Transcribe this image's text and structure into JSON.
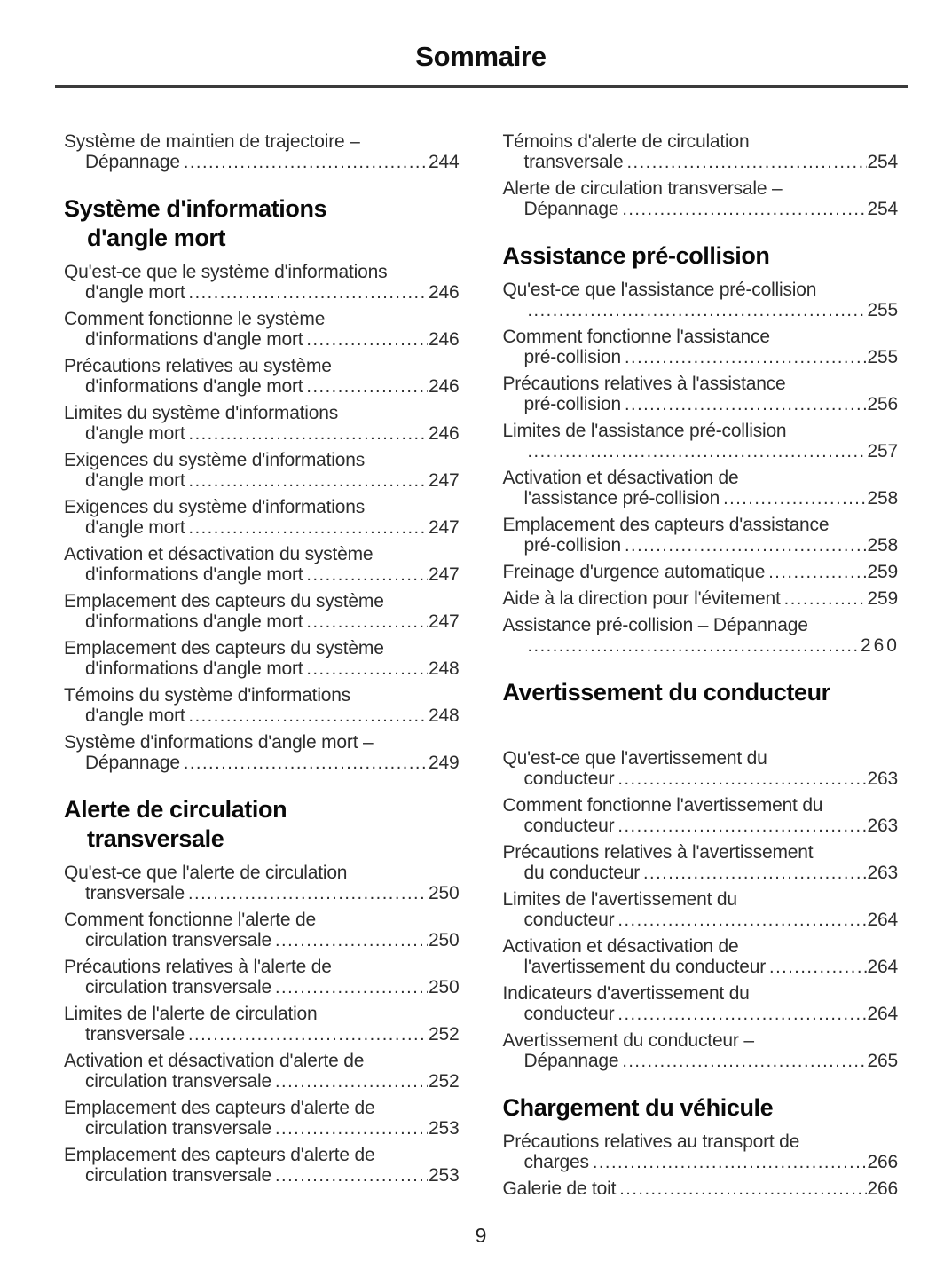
{
  "title": "Sommaire",
  "page_number": "9",
  "toc": {
    "left_column": [
      {
        "heading": null,
        "entries": [
          {
            "lines": [
              "Système de maintien de trajectoire –",
              "Dépannage"
            ],
            "page": "244"
          }
        ]
      },
      {
        "heading": [
          "Système d'informations",
          "d'angle mort"
        ],
        "entries": [
          {
            "lines": [
              "Qu'est-ce que le système d'informations",
              "d'angle mort"
            ],
            "page": "246"
          },
          {
            "lines": [
              "Comment fonctionne le système",
              "d'informations d'angle mort"
            ],
            "page": "246"
          },
          {
            "lines": [
              "Précautions relatives au système",
              "d'informations d'angle mort"
            ],
            "page": "246"
          },
          {
            "lines": [
              "Limites du système d'informations",
              "d'angle mort"
            ],
            "page": "246"
          },
          {
            "lines": [
              "Exigences du système d'informations",
              "d'angle mort"
            ],
            "page": "247"
          },
          {
            "lines": [
              "Exigences du système d'informations",
              "d'angle mort"
            ],
            "page": "247"
          },
          {
            "lines": [
              "Activation et désactivation du système",
              "d'informations d'angle mort"
            ],
            "page": "247"
          },
          {
            "lines": [
              "Emplacement des capteurs du système",
              "d'informations d'angle mort"
            ],
            "page": "247"
          },
          {
            "lines": [
              "Emplacement des capteurs du système",
              "d'informations d'angle mort"
            ],
            "page": "248"
          },
          {
            "lines": [
              "Témoins du système d'informations",
              "d'angle mort"
            ],
            "page": "248"
          },
          {
            "lines": [
              "Système d'informations d'angle mort –",
              "Dépannage"
            ],
            "page": "249"
          }
        ]
      },
      {
        "heading": [
          "Alerte de circulation",
          "transversale"
        ],
        "entries": [
          {
            "lines": [
              "Qu'est-ce que l'alerte de circulation",
              "transversale"
            ],
            "page": "250"
          },
          {
            "lines": [
              "Comment fonctionne l'alerte de",
              "circulation transversale"
            ],
            "page": "250"
          },
          {
            "lines": [
              "Précautions relatives à l'alerte de",
              "circulation transversale"
            ],
            "page": "250"
          },
          {
            "lines": [
              "Limites de l'alerte de circulation",
              "transversale"
            ],
            "page": "252"
          },
          {
            "lines": [
              "Activation et désactivation d'alerte de",
              "circulation transversale"
            ],
            "page": "252"
          },
          {
            "lines": [
              "Emplacement des capteurs d'alerte de",
              "circulation transversale"
            ],
            "page": "253"
          },
          {
            "lines": [
              "Emplacement des capteurs d'alerte de",
              "circulation transversale"
            ],
            "page": "253"
          }
        ]
      }
    ],
    "right_column": [
      {
        "heading": null,
        "entries": [
          {
            "lines": [
              "Témoins d'alerte de circulation",
              "transversale"
            ],
            "page": "254"
          },
          {
            "lines": [
              "Alerte de circulation transversale –",
              "Dépannage"
            ],
            "page": "254"
          }
        ]
      },
      {
        "heading": [
          "Assistance pré-collision"
        ],
        "entries": [
          {
            "lines": [
              "Qu'est-ce que l'assistance pré-collision",
              ""
            ],
            "page": "255"
          },
          {
            "lines": [
              "Comment fonctionne l'assistance",
              "pré-collision"
            ],
            "page": "255"
          },
          {
            "lines": [
              "Précautions relatives à l'assistance",
              "pré-collision"
            ],
            "page": "256"
          },
          {
            "lines": [
              "Limites de l'assistance pré-collision",
              ""
            ],
            "page": "257"
          },
          {
            "lines": [
              "Activation et désactivation de",
              "l'assistance pré-collision"
            ],
            "page": "258"
          },
          {
            "lines": [
              "Emplacement des capteurs d'assistance",
              "pré-collision"
            ],
            "page": "258"
          },
          {
            "lines": [
              "Freinage d'urgence automatique"
            ],
            "page": "259"
          },
          {
            "lines": [
              "Aide à la direction pour l'évitement"
            ],
            "page": "259"
          },
          {
            "lines": [
              "Assistance pré-collision – Dépannage",
              ""
            ],
            "page": "260",
            "page_spaced": true
          }
        ]
      },
      {
        "heading": [
          "Avertissement du conducteur"
        ],
        "gap_after_heading": true,
        "entries": [
          {
            "lines": [
              "Qu'est-ce que l'avertissement du",
              "conducteur"
            ],
            "page": "263"
          },
          {
            "lines": [
              "Comment fonctionne l'avertissement du",
              "conducteur"
            ],
            "page": "263"
          },
          {
            "lines": [
              "Précautions relatives à l'avertissement",
              "du conducteur"
            ],
            "page": "263"
          },
          {
            "lines": [
              "Limites de l'avertissement du",
              "conducteur"
            ],
            "page": "264"
          },
          {
            "lines": [
              "Activation et désactivation de",
              "l'avertissement du conducteur"
            ],
            "page": "264"
          },
          {
            "lines": [
              "Indicateurs d'avertissement du",
              "conducteur"
            ],
            "page": "264"
          },
          {
            "lines": [
              "Avertissement du conducteur –",
              "Dépannage"
            ],
            "page": "265"
          }
        ]
      },
      {
        "heading": [
          "Chargement du véhicule"
        ],
        "entries": [
          {
            "lines": [
              "Précautions relatives au transport de",
              "charges"
            ],
            "page": "266"
          },
          {
            "lines": [
              "Galerie de toit"
            ],
            "page": "266"
          }
        ]
      }
    ]
  }
}
